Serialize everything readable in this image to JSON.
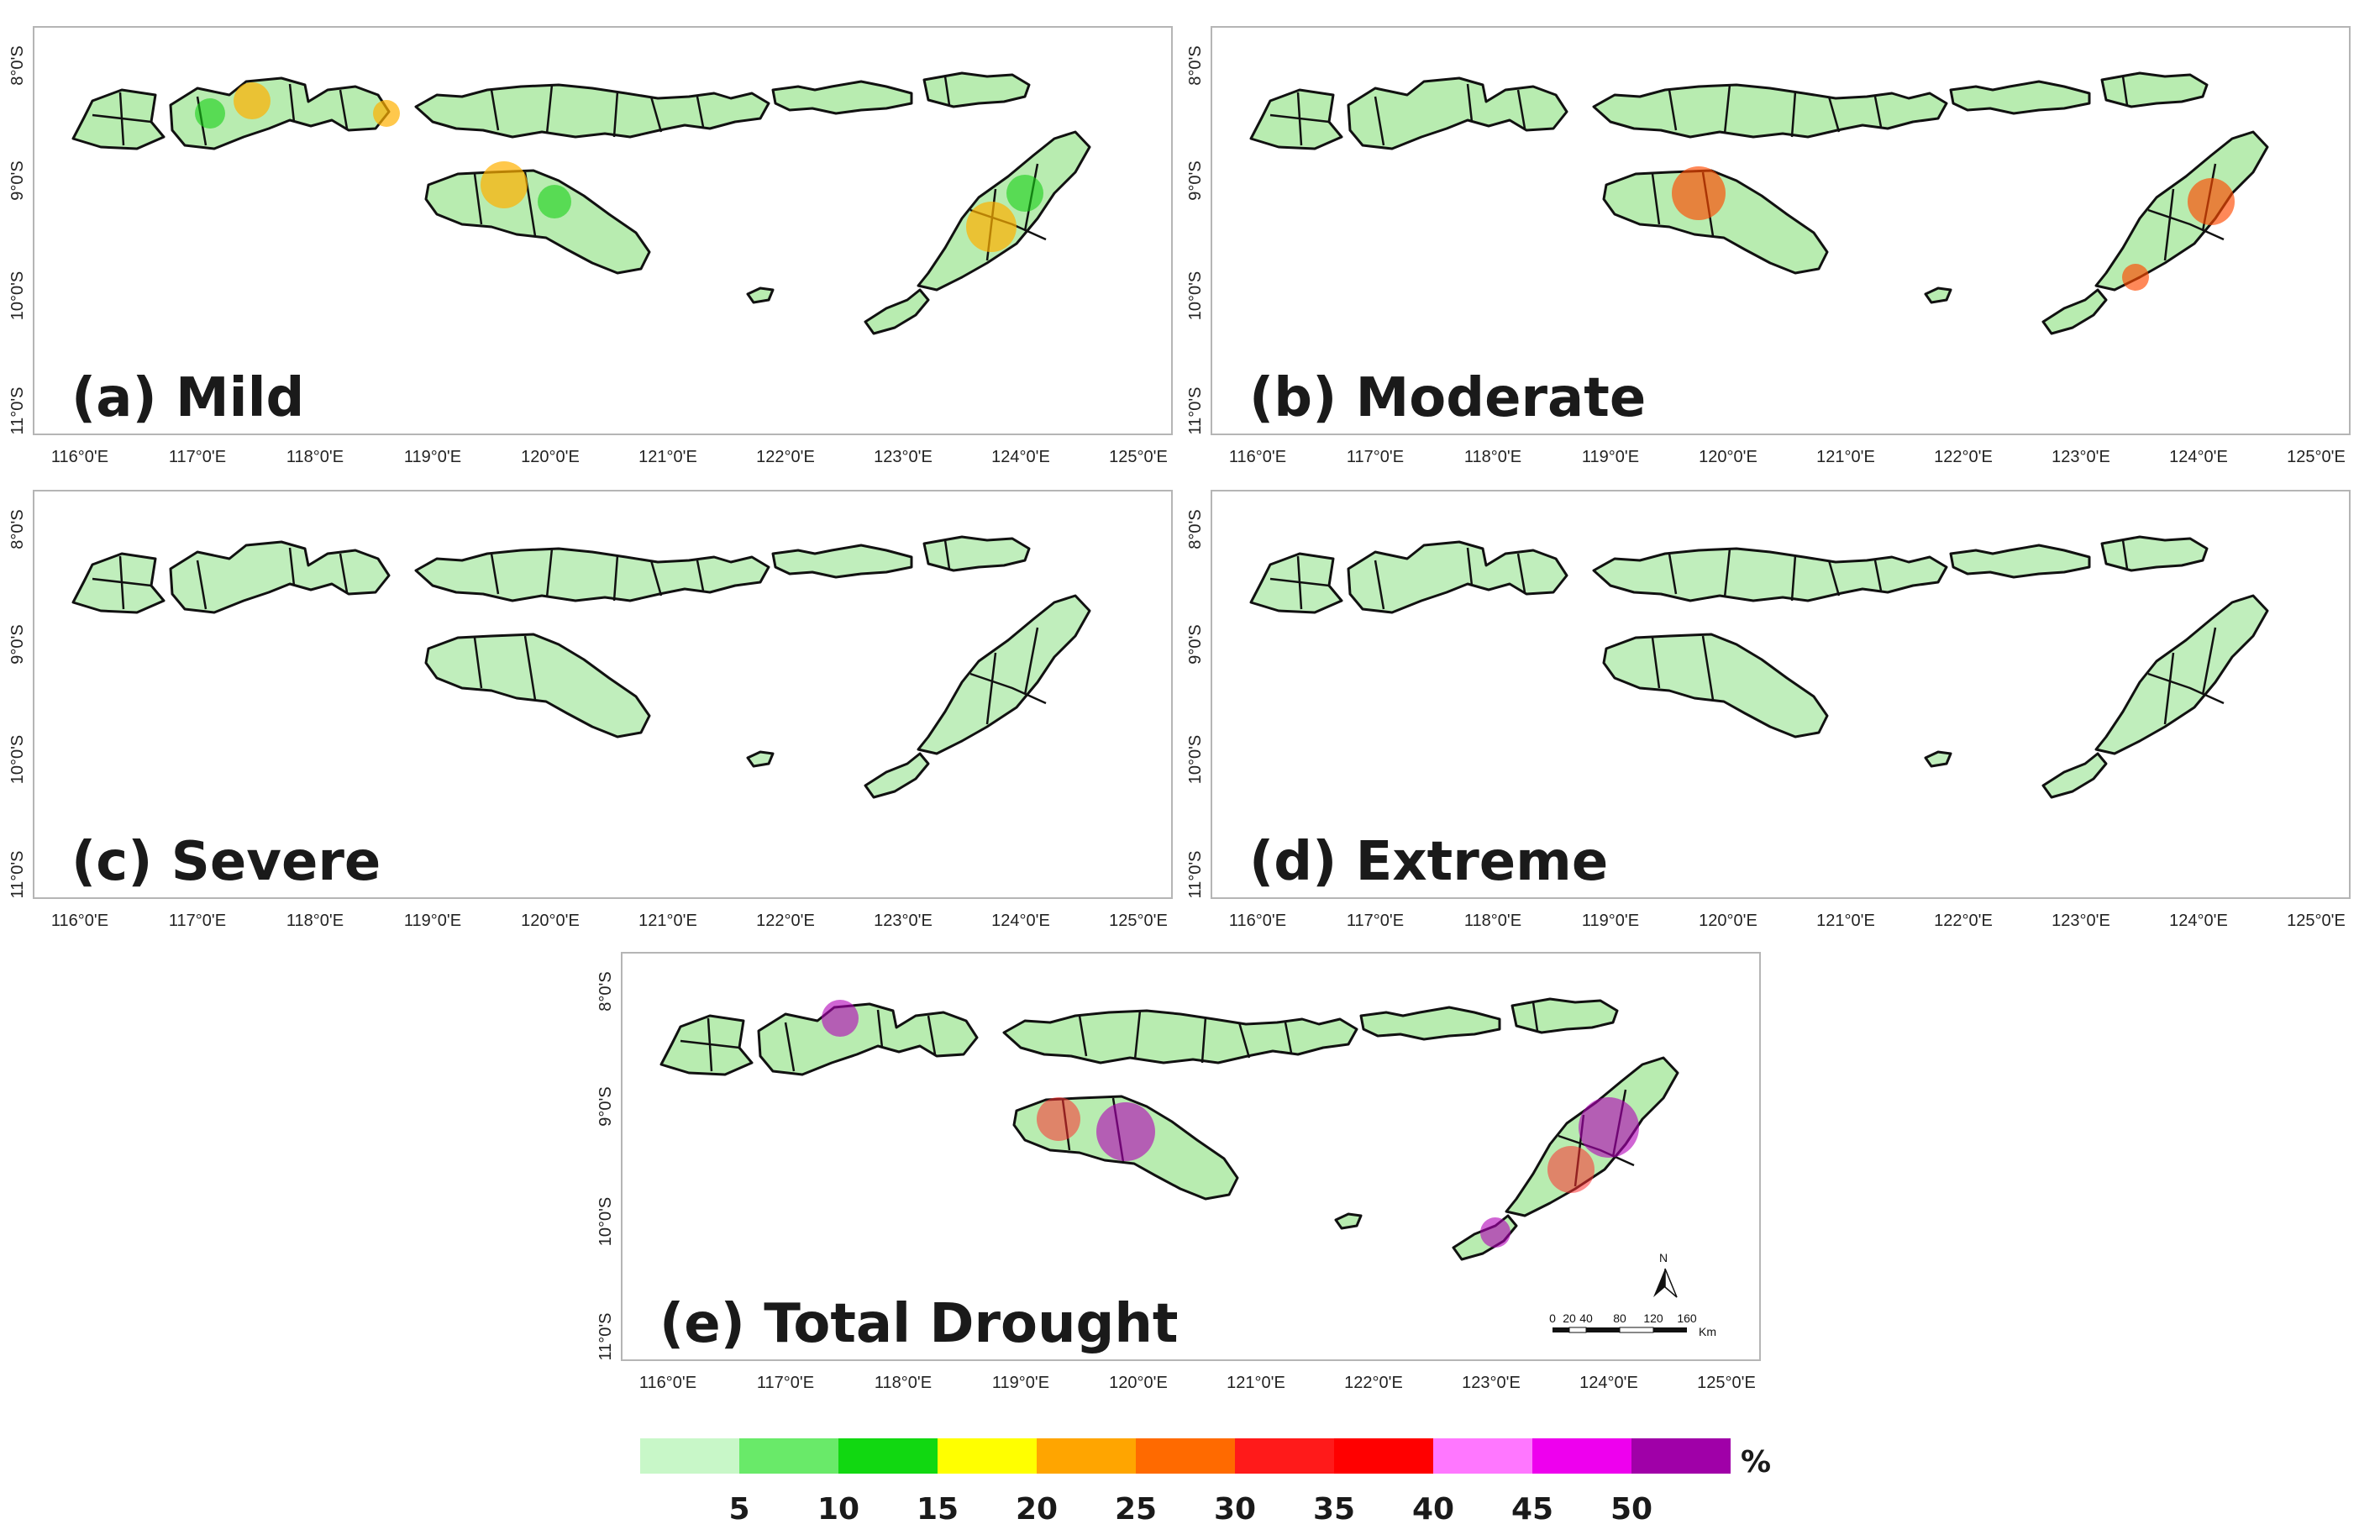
{
  "figure": {
    "panels": [
      {
        "id": "a",
        "label": "(a) Mild"
      },
      {
        "id": "b",
        "label": "(b) Moderate"
      },
      {
        "id": "c",
        "label": "(c) Severe"
      },
      {
        "id": "d",
        "label": "(d) Extreme"
      },
      {
        "id": "e",
        "label": "(e) Total Drought"
      }
    ],
    "lon_ticks": [
      "116°0'E",
      "117°0'E",
      "118°0'E",
      "119°0'E",
      "120°0'E",
      "121°0'E",
      "122°0'E",
      "123°0'E",
      "124°0'E",
      "125°0'E"
    ],
    "lat_ticks": [
      "8°0'S",
      "9°0'S",
      "10°0'S",
      "11°0'S"
    ],
    "north_arrow": "N",
    "scale_bar": {
      "labels": [
        "0",
        "20",
        "40",
        "80",
        "120",
        "160"
      ],
      "unit": "Km"
    }
  },
  "legend": {
    "unit": "%",
    "colors": [
      "#c8f7c8",
      "#69ea69",
      "#11d811",
      "#ffff00",
      "#ffa500",
      "#ff6a00",
      "#ff1a1a",
      "#ff0000",
      "#ff77ff",
      "#ee00ee",
      "#a000a8"
    ],
    "labels": [
      "5",
      "10",
      "15",
      "20",
      "25",
      "30",
      "35",
      "40",
      "45",
      "50"
    ]
  }
}
